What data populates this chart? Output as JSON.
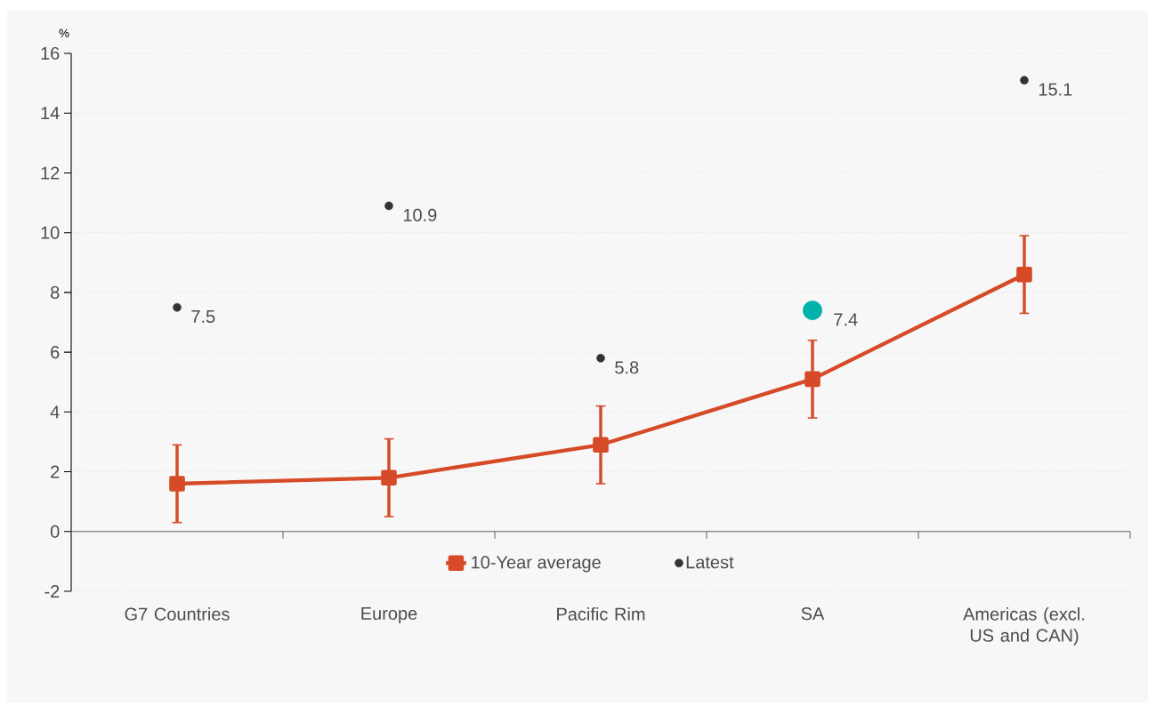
{
  "chart_data": {
    "type": "line",
    "ylabel": "%",
    "categories": [
      "G7 Countries",
      "Europe",
      "Pacific Rim",
      "SA",
      "Americas (excl. US and CAN)"
    ],
    "ylim": [
      -2,
      16
    ],
    "yticks": [
      -2,
      0,
      2,
      4,
      6,
      8,
      10,
      12,
      14,
      16
    ],
    "grid": "y",
    "legend": "bottom",
    "series": [
      {
        "name": "10-Year average",
        "type": "line",
        "color": "#d64b27",
        "marker": "square",
        "values": [
          1.6,
          1.8,
          2.9,
          5.1,
          8.6
        ],
        "errors": [
          1.3,
          1.3,
          1.3,
          1.3,
          1.3
        ]
      },
      {
        "name": "Latest",
        "type": "scatter",
        "color": "#333333",
        "marker": "circle",
        "data_labels": true,
        "sizes": [
          0.18,
          0.18,
          0.18,
          1,
          0.18
        ],
        "colors": [
          "#333333",
          "#333333",
          "#333333",
          "#00b2a9",
          "#333333"
        ],
        "values": [
          7.5,
          10.9,
          5.8,
          7.4,
          15.1
        ]
      }
    ]
  }
}
